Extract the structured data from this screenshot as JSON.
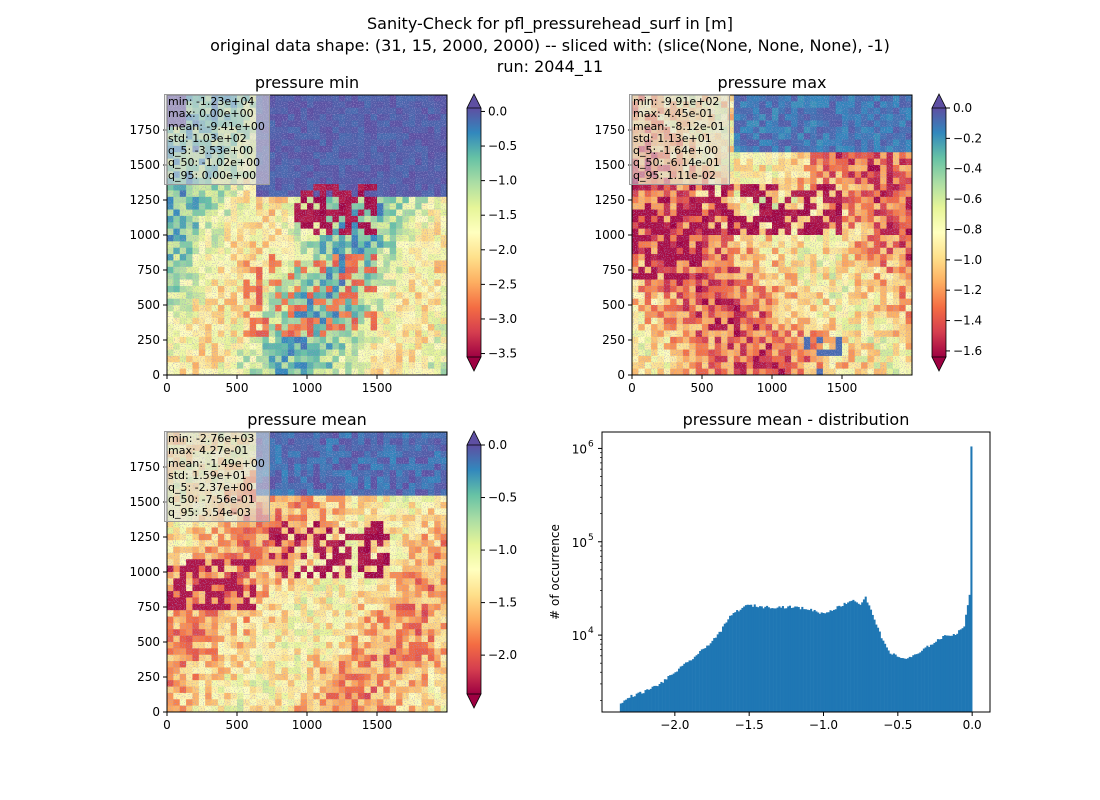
{
  "suptitle": {
    "line1": "Sanity-Check for pfl_pressurehead_surf in [m]",
    "line2": "original data shape: (31, 15, 2000, 2000) -- sliced with: (slice(None, None, None), -1)",
    "line3": "run: 2044_11"
  },
  "colormap": "Spectral",
  "colors": {
    "histogram_bar": "#1f77b4",
    "spectral_stops": [
      "#9e0142",
      "#d53e4f",
      "#f46d43",
      "#fdae61",
      "#fee08b",
      "#ffffbf",
      "#e6f598",
      "#abdda4",
      "#66c2a5",
      "#3288bd",
      "#5e4fa2"
    ]
  },
  "chart_data": [
    {
      "type": "heatmap",
      "title": "pressure min",
      "xlim": [
        0,
        2000
      ],
      "ylim": [
        0,
        2000
      ],
      "xticks": [
        0,
        500,
        1000,
        1500
      ],
      "yticks": [
        0,
        250,
        500,
        750,
        1000,
        1250,
        1500,
        1750
      ],
      "colorbar": {
        "vmin": -3.55,
        "vmax": 0.05,
        "ticks": [
          0.0,
          -0.5,
          -1.0,
          -1.5,
          -2.0,
          -2.5,
          -3.0,
          -3.5
        ],
        "extend": "both"
      },
      "stats": {
        "min": "min: -1.23e+04",
        "max": "max: 0.00e+00",
        "mean": "mean: -9.41e+00",
        "std": "std: 1.03e+02",
        "q_5": "q_5: -3.53e+00",
        "q_50": "q_50: -1.02e+00",
        "q_95": "q_95: 0.00e+00"
      }
    },
    {
      "type": "heatmap",
      "title": "pressure max",
      "xlim": [
        0,
        2000
      ],
      "ylim": [
        0,
        2000
      ],
      "xticks": [
        0,
        500,
        1000,
        1500
      ],
      "yticks": [
        0,
        250,
        500,
        750,
        1000,
        1250,
        1500,
        1750
      ],
      "colorbar": {
        "vmin": -1.64,
        "vmax": 0.0,
        "ticks": [
          0.0,
          -0.2,
          -0.4,
          -0.6,
          -0.8,
          -1.0,
          -1.2,
          -1.4,
          -1.6
        ],
        "extend": "both"
      },
      "stats": {
        "min": "min: -9.91e+02",
        "max": "max: 4.45e-01",
        "mean": "mean: -8.12e-01",
        "std": "std: 1.13e+01",
        "q_5": "q_5: -1.64e+00",
        "q_50": "q_50: -6.14e-01",
        "q_95": "q_95: 1.11e-02"
      }
    },
    {
      "type": "heatmap",
      "title": "pressure mean",
      "xlim": [
        0,
        2000
      ],
      "ylim": [
        0,
        2000
      ],
      "xticks": [
        0,
        500,
        1000,
        1500
      ],
      "yticks": [
        0,
        250,
        500,
        750,
        1000,
        1250,
        1500,
        1750
      ],
      "colorbar": {
        "vmin": -2.37,
        "vmax": 0.0,
        "ticks": [
          0.0,
          -0.5,
          -1.0,
          -1.5,
          -2.0
        ],
        "extend": "both"
      },
      "stats": {
        "min": "min: -2.76e+03",
        "max": "max: 4.27e-01",
        "mean": "mean: -1.49e+00",
        "std": "std: 1.59e+01",
        "q_5": "q_5: -2.37e+00",
        "q_50": "q_50: -7.56e-01",
        "q_95": "q_95: 5.54e-03"
      }
    },
    {
      "type": "bar",
      "title": "pressure mean - distribution",
      "xlabel": "",
      "ylabel": "# of occurrence",
      "yscale": "log",
      "xlim": [
        -2.49,
        0.12
      ],
      "ylim": [
        1500,
        1500000
      ],
      "xticks": [
        -2.0,
        -1.5,
        -1.0,
        -0.5,
        0.0
      ],
      "xtick_labels": [
        "−2.0",
        "−1.5",
        "−1.0",
        "−0.5",
        "0.0"
      ],
      "yticks": [
        10000,
        100000,
        1000000
      ],
      "ytick_labels": [
        "10",
        "10",
        "10"
      ],
      "ytick_exponents": [
        "4",
        "5",
        "6"
      ],
      "bin_range": [
        -2.37,
        0.0
      ],
      "profile_x": [
        -2.37,
        -2.3,
        -2.2,
        -2.1,
        -2.0,
        -1.9,
        -1.8,
        -1.7,
        -1.62,
        -1.55,
        -1.5,
        -1.45,
        -1.4,
        -1.3,
        -1.2,
        -1.1,
        -1.0,
        -0.95,
        -0.9,
        -0.85,
        -0.8,
        -0.75,
        -0.72,
        -0.68,
        -0.65,
        -0.6,
        -0.55,
        -0.5,
        -0.45,
        -0.4,
        -0.35,
        -0.3,
        -0.25,
        -0.2,
        -0.15,
        -0.1,
        -0.05,
        -0.02,
        -0.012,
        -0.006,
        -0.002,
        0.0
      ],
      "profile_y": [
        1800,
        2200,
        2500,
        3000,
        4000,
        5300,
        7200,
        10500,
        16500,
        19500,
        21000,
        20500,
        20000,
        20000,
        20000,
        19000,
        17000,
        18500,
        20000,
        22000,
        24000,
        21000,
        26000,
        18000,
        14000,
        8500,
        6500,
        5800,
        5600,
        5900,
        6500,
        7500,
        8500,
        9500,
        10000,
        10500,
        13000,
        27000,
        170000,
        13000,
        1050000,
        28000
      ]
    }
  ]
}
